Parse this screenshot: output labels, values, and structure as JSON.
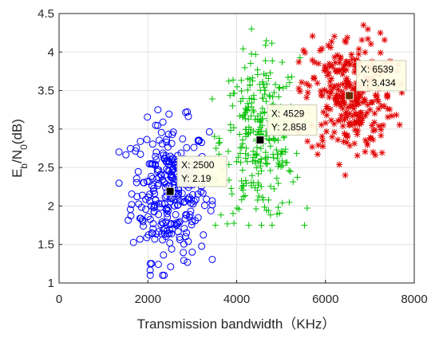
{
  "chart_data": {
    "type": "scatter",
    "title": "",
    "xlabel": "Transmission bandwidth（KHz）",
    "ylabel": {
      "base": "E",
      "sub1": "b",
      "mid": "/N",
      "sub2": "0",
      "tail": "(dB)"
    },
    "xlim": [
      0,
      8000
    ],
    "ylim": [
      1,
      4.5
    ],
    "x_ticks": [
      "0",
      "2000",
      "4000",
      "6000",
      "8000"
    ],
    "y_ticks": [
      "1",
      "1.5",
      "2",
      "2.5",
      "3",
      "3.5",
      "4",
      "4.5"
    ],
    "grid": true,
    "legend": "none",
    "series": [
      {
        "marker": "circle",
        "color": "#0000ff",
        "cluster": {
          "x_range": [
            1350,
            3450
          ],
          "y_range": [
            1.1,
            3.25
          ],
          "center": [
            2500,
            2.19
          ],
          "count": 300
        }
      },
      {
        "marker": "plus",
        "color": "#00c000",
        "cluster": {
          "x_range": [
            3450,
            5600
          ],
          "y_range": [
            1.75,
            4.3
          ],
          "center": [
            4529,
            2.858
          ],
          "count": 300
        }
      },
      {
        "marker": "asterisk",
        "color": "#e00000",
        "cluster": {
          "x_range": [
            5400,
            7800
          ],
          "y_range": [
            2.4,
            4.35
          ],
          "center": [
            6539,
            3.434
          ],
          "count": 300
        }
      }
    ],
    "datatips": [
      {
        "x": 2500,
        "y": 2.19,
        "x_label": "X: 2500",
        "y_label": "Y: 2.19",
        "face": "#000000"
      },
      {
        "x": 4529,
        "y": 2.858,
        "x_label": "X: 4529",
        "y_label": "Y: 2.858",
        "face": "#000000"
      },
      {
        "x": 6539,
        "y": 3.434,
        "x_label": "X: 6539",
        "y_label": "Y: 3.434",
        "face": "#6b2a00"
      }
    ]
  }
}
